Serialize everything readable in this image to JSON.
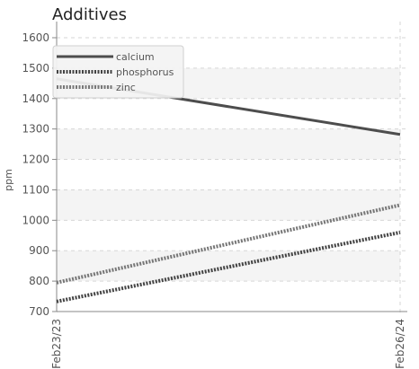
{
  "chart_data": {
    "type": "line",
    "title": "Additives",
    "ylabel": "ppm",
    "xlabel": "",
    "ylim": [
      700,
      1600
    ],
    "yticks": [
      700,
      800,
      900,
      1000,
      1100,
      1200,
      1300,
      1400,
      1500,
      1600
    ],
    "x": [
      "Feb23/23",
      "Feb26/24"
    ],
    "grid": true,
    "legend_position": "top-left",
    "series": [
      {
        "name": "calcium",
        "values": [
          1465,
          1282
        ],
        "color": "#4d4d4d",
        "style": "solid"
      },
      {
        "name": "phosphorus",
        "values": [
          733,
          960
        ],
        "color": "#444444",
        "style": "dotted"
      },
      {
        "name": "zinc",
        "values": [
          795,
          1050
        ],
        "color": "#777777",
        "style": "dotted"
      }
    ]
  }
}
